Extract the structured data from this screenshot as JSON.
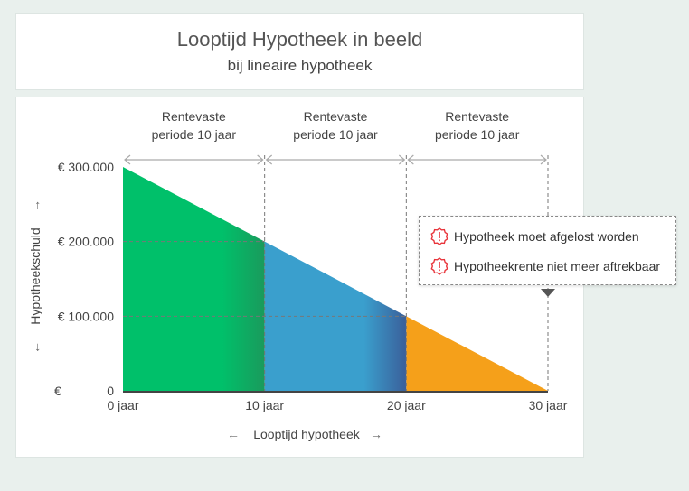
{
  "header": {
    "title": "Looptijd Hypotheek in beeld",
    "subtitle": "bij lineaire hypotheek"
  },
  "chart_data": {
    "type": "area",
    "x": [
      0,
      10,
      20,
      30
    ],
    "y": [
      300000,
      200000,
      100000,
      0
    ],
    "xlabel": "Looptijd hypotheek",
    "ylabel": "Hypotheekschuld",
    "xticks": [
      "0 jaar",
      "10 jaar",
      "20 jaar",
      "30 jaar"
    ],
    "yticks": [
      {
        "v": 300000,
        "label": "€ 300.000"
      },
      {
        "v": 200000,
        "label": "€ 200.000"
      },
      {
        "v": 100000,
        "label": "€ 100.000"
      },
      {
        "v": 0,
        "label": "0",
        "prefix": "€"
      }
    ],
    "xlim": [
      0,
      30
    ],
    "ylim": [
      0,
      300000
    ],
    "segments": [
      {
        "from": 0,
        "to": 10,
        "color": "#00c06a",
        "label1": "Rentevaste",
        "label2": "periode 10 jaar"
      },
      {
        "from": 10,
        "to": 20,
        "color": "#3a9fcd",
        "label1": "Rentevaste",
        "label2": "periode 10 jaar"
      },
      {
        "from": 20,
        "to": 30,
        "color": "#f5a01a",
        "label1": "Rentevaste",
        "label2": "periode 10 jaar"
      }
    ]
  },
  "tooltip": {
    "items": [
      {
        "icon": "warning-badge-icon",
        "text": "Hypotheek moet afgelost worden"
      },
      {
        "icon": "warning-badge-icon",
        "text": "Hypotheekrente niet meer aftrekbaar"
      }
    ],
    "accent": "#e8343b"
  }
}
